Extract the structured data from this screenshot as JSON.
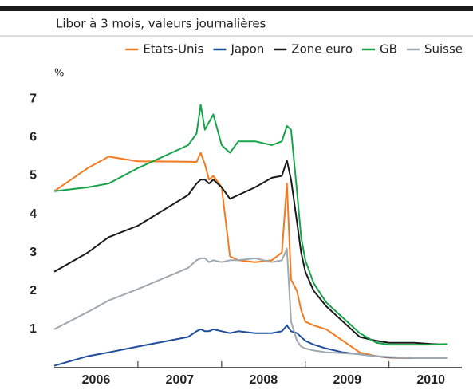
{
  "chart_data": {
    "type": "line",
    "subtitle": "Libor à 3 mois, valeurs journalières",
    "y_label": "%",
    "x": [
      2006,
      2006.4,
      2006.65,
      2007,
      2007.6,
      2007.7,
      2007.75,
      2007.8,
      2007.85,
      2007.9,
      2008,
      2008.1,
      2008.2,
      2008.4,
      2008.6,
      2008.72,
      2008.78,
      2008.83,
      2008.9,
      2008.95,
      2009,
      2009.1,
      2009.25,
      2009.45,
      2009.65,
      2009.85,
      2010,
      2010.3,
      2010.5,
      2010.7
    ],
    "series": [
      {
        "name": "Etats-Unis",
        "color": "#f47a20",
        "values": [
          4.6,
          5.2,
          5.5,
          5.38,
          5.37,
          5.36,
          5.6,
          5.3,
          4.9,
          5.0,
          4.7,
          2.9,
          2.8,
          2.75,
          2.8,
          3.0,
          4.8,
          2.3,
          2.0,
          1.5,
          1.2,
          1.1,
          1.0,
          0.7,
          0.4,
          0.3,
          0.26,
          0.25,
          0.25,
          0.25
        ]
      },
      {
        "name": "Japon",
        "color": "#1f4e9c",
        "values": [
          0.05,
          0.3,
          0.4,
          0.55,
          0.8,
          0.95,
          1.0,
          0.95,
          0.95,
          1.0,
          0.95,
          0.9,
          0.95,
          0.9,
          0.9,
          0.95,
          1.1,
          0.95,
          0.9,
          0.8,
          0.7,
          0.6,
          0.5,
          0.4,
          0.35,
          0.3,
          0.27,
          0.25,
          0.25,
          0.25
        ]
      },
      {
        "name": "Zone euro",
        "color": "#1a1a1a",
        "values": [
          2.5,
          3.0,
          3.4,
          3.7,
          4.5,
          4.8,
          4.9,
          4.9,
          4.8,
          4.9,
          4.7,
          4.4,
          4.5,
          4.7,
          4.95,
          5.0,
          5.4,
          4.9,
          3.8,
          3.0,
          2.5,
          2.0,
          1.6,
          1.2,
          0.8,
          0.7,
          0.65,
          0.65,
          0.62,
          0.6
        ]
      },
      {
        "name": "GB",
        "color": "#17a34a",
        "values": [
          4.6,
          4.7,
          4.8,
          5.2,
          5.8,
          6.1,
          6.85,
          6.2,
          6.4,
          6.6,
          5.8,
          5.6,
          5.9,
          5.9,
          5.8,
          5.9,
          6.3,
          6.2,
          4.6,
          3.4,
          2.8,
          2.2,
          1.7,
          1.3,
          0.9,
          0.65,
          0.6,
          0.6,
          0.6,
          0.62
        ]
      },
      {
        "name": "Suisse",
        "color": "#a0a8b0",
        "values": [
          1.0,
          1.45,
          1.75,
          2.05,
          2.6,
          2.8,
          2.85,
          2.85,
          2.75,
          2.8,
          2.75,
          2.8,
          2.8,
          2.85,
          2.75,
          2.8,
          3.1,
          1.2,
          0.7,
          0.55,
          0.5,
          0.45,
          0.4,
          0.38,
          0.35,
          0.3,
          0.28,
          0.25,
          0.25,
          0.25
        ]
      }
    ],
    "xlim": [
      2006,
      2010.87
    ],
    "xticks": [
      {
        "value": 2006.5,
        "label": "2006"
      },
      {
        "value": 2007.5,
        "label": "2007"
      },
      {
        "value": 2008.5,
        "label": "2008"
      },
      {
        "value": 2009.5,
        "label": "2009"
      },
      {
        "value": 2010.5,
        "label": "2010"
      }
    ],
    "ylim": [
      0,
      7.4
    ],
    "yticks": [
      1,
      2,
      3,
      4,
      5,
      6,
      7
    ]
  }
}
